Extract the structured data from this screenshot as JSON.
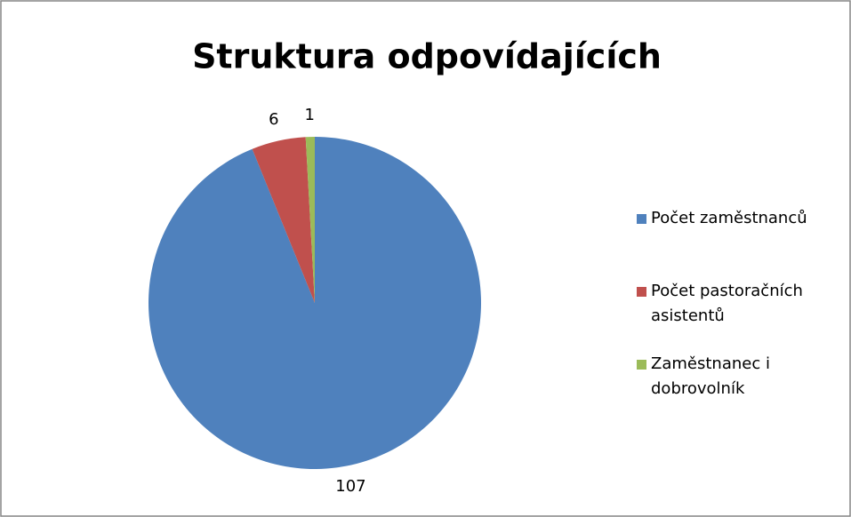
{
  "chart_data": {
    "type": "pie",
    "title": "Struktura odpovídajících",
    "categories": [
      "Počet zaměstnanců",
      "Počet pastoračních asistentů",
      "Zaměstnanec i dobrovolník"
    ],
    "values": [
      107,
      6,
      1
    ],
    "colors": [
      "#4f81bd",
      "#c0504d",
      "#9bbb59"
    ],
    "legend": "right"
  }
}
